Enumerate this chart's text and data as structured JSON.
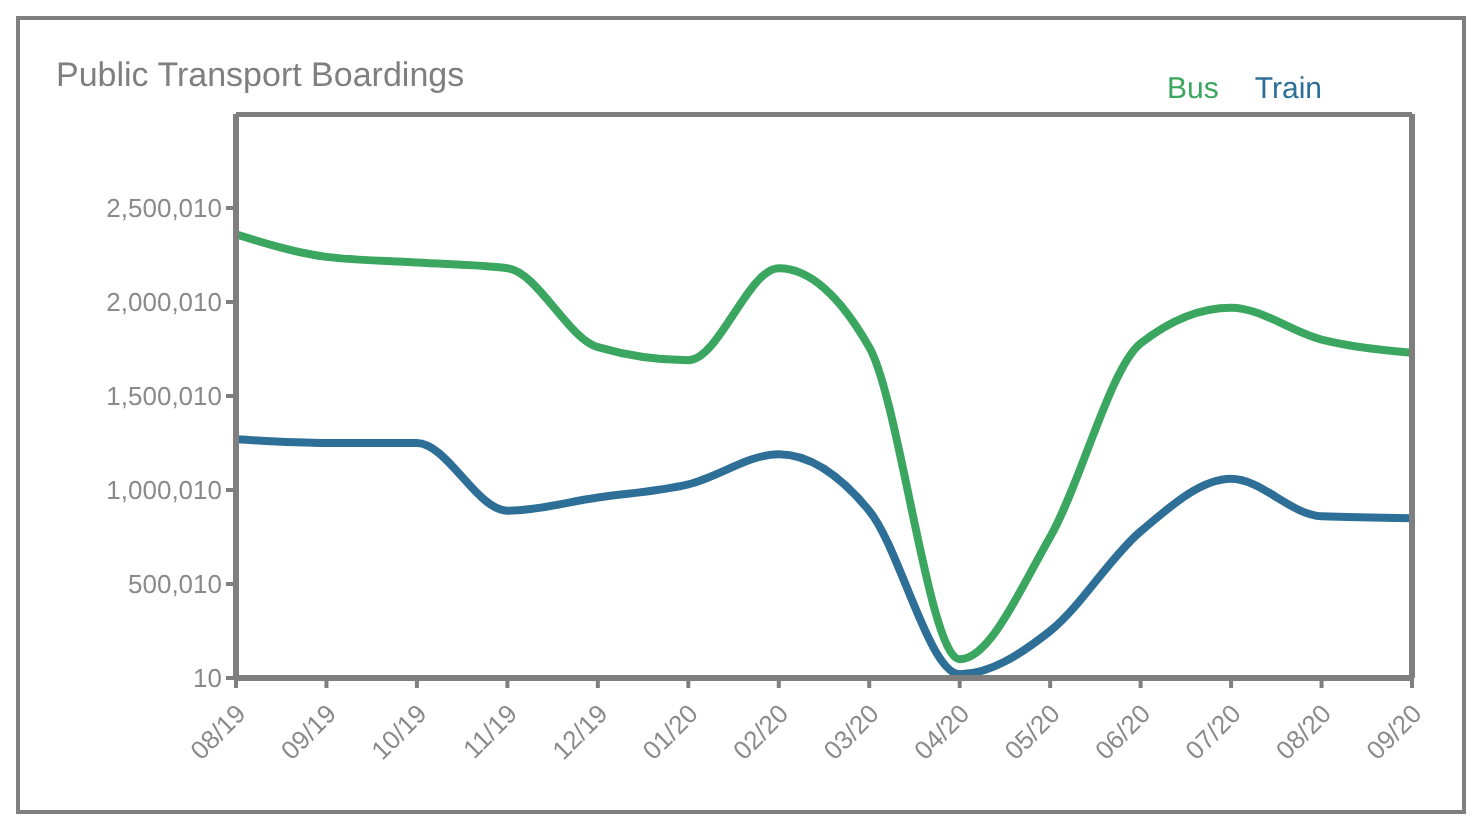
{
  "chart_data": {
    "type": "line",
    "title": "Public Transport Boardings",
    "categories": [
      "08/19",
      "09/19",
      "10/19",
      "11/19",
      "12/19",
      "01/20",
      "02/20",
      "03/20",
      "04/20",
      "05/20",
      "06/20",
      "07/20",
      "08/20",
      "09/20"
    ],
    "series": [
      {
        "name": "Bus",
        "color": "#3aa65f",
        "values": [
          2360000,
          2240000,
          2210000,
          2180000,
          1760000,
          1690000,
          2180000,
          1760000,
          100000,
          750000,
          1780000,
          1970000,
          1800000,
          1730000
        ]
      },
      {
        "name": "Train",
        "color": "#2e6f97",
        "values": [
          1270000,
          1250000,
          1250000,
          890000,
          960000,
          1030000,
          1190000,
          890000,
          20000,
          250000,
          780000,
          1060000,
          860000,
          850000
        ]
      }
    ],
    "ylim": [
      10,
      3000010
    ],
    "yticks": [
      10,
      {
        "value": 500010,
        "label": "500,010"
      },
      {
        "value": 1000010,
        "label": "1,000,010"
      },
      {
        "value": 1500010,
        "label": "1,500,010"
      },
      {
        "value": 2000010,
        "label": "2,000,010"
      },
      {
        "value": 2500010,
        "label": "2,500,010"
      }
    ],
    "grid": false,
    "legend": "top right",
    "marker": "none",
    "line_style": "solid"
  }
}
